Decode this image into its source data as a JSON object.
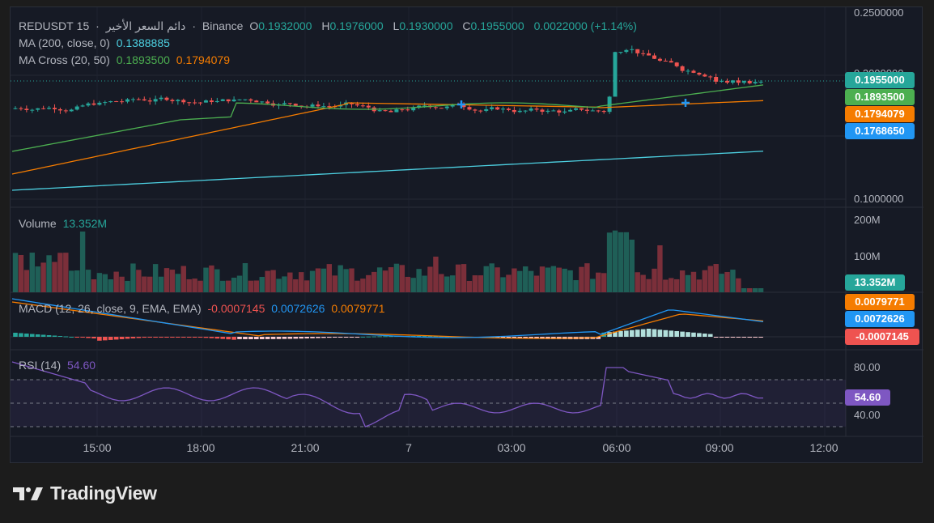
{
  "header": {
    "symbol": "REDUSDT",
    "interval": "15",
    "sep": "·",
    "source_name": "دائم السعر الأخير",
    "exchange": "Binance",
    "open_label": "O",
    "open": "0.1932000",
    "high_label": "H",
    "high": "0.1976000",
    "low_label": "L",
    "low": "0.1930000",
    "close_label": "C",
    "close": "0.1955000",
    "change": "0.0022000 (+1.14%)"
  },
  "indicators": {
    "ma200": {
      "label": "MA (200, close, 0)",
      "value": "0.1388885",
      "color": "#4dd0e1"
    },
    "ma_cross": {
      "label": "MA Cross (20, 50)",
      "fast": "0.1893500",
      "slow": "0.1794079",
      "fast_color": "#4caf50",
      "slow_color": "#f57c00"
    },
    "volume": {
      "label": "Volume",
      "value": "13.352M"
    },
    "macd": {
      "label": "MACD (12, 26, close, 9, EMA, EMA)",
      "hist": "-0.0007145",
      "macd": "0.0072626",
      "signal": "0.0079771"
    },
    "rsi": {
      "label": "RSI (14)",
      "value": "54.60"
    }
  },
  "price_axis": {
    "ticks": [
      "0.2500000",
      "0.2000000",
      "0.1000000"
    ],
    "badges": {
      "last": "0.1955000",
      "ma_fast": "0.1893500",
      "ma_slow": "0.1794079",
      "prev": "0.1768650"
    }
  },
  "volume_axis": {
    "ticks": [
      "200M",
      "100M"
    ],
    "badge": "13.352M"
  },
  "macd_axis": {
    "badges": [
      "0.0079771",
      "0.0072626",
      "-0.0007145"
    ]
  },
  "rsi_axis": {
    "ticks": [
      "80.00",
      "40.00"
    ],
    "badge": "54.60"
  },
  "time_axis": [
    "15:00",
    "18:00",
    "21:00",
    "7",
    "03:00",
    "06:00",
    "09:00",
    "12:00"
  ],
  "colors": {
    "up": "#26a69a",
    "down": "#ef5350",
    "ma200": "#4dd0e1",
    "ma_fast": "#4caf50",
    "ma_slow": "#f57c00",
    "macd_line": "#2196f3",
    "signal_line": "#f57c00",
    "rsi_line": "#7e57c2",
    "rsi_badge": "#7e57c2",
    "prev_badge": "#2196f3"
  },
  "brand": {
    "name": "TradingView"
  }
}
